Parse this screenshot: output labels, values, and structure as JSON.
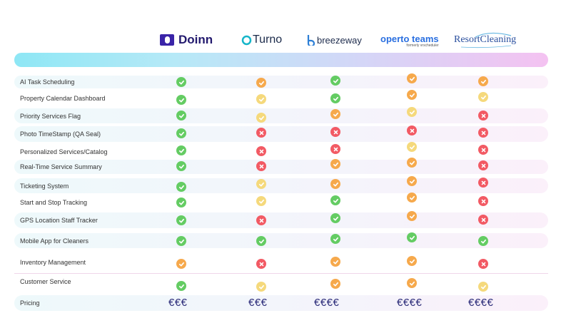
{
  "colors": {
    "yes": "#64cc63",
    "partial": "#f6a94c",
    "limited": "#f5d97c",
    "no": "#f25a64",
    "price": "#2a2a78"
  },
  "competitors": [
    {
      "name": "Doinn"
    },
    {
      "name": "Turno"
    },
    {
      "name": "breezeway"
    },
    {
      "name": "operto teams",
      "sub": "formerly vrscheduler"
    },
    {
      "name": "ResortCleaning"
    }
  ],
  "features": [
    {
      "label": "AI Task Scheduling",
      "marks": [
        "yes",
        "partial",
        "yes",
        "partial",
        "partial"
      ]
    },
    {
      "label": "Property Calendar Dashboard",
      "marks": [
        "yes",
        "limited",
        "yes",
        "partial",
        "limited"
      ]
    },
    {
      "label": "Priority Services Flag",
      "marks": [
        "yes",
        "limited",
        "partial",
        "limited",
        "no"
      ]
    },
    {
      "label": "Photo TimeStamp (QA Seal)",
      "marks": [
        "yes",
        "no",
        "no",
        "no",
        "no"
      ]
    },
    {
      "label": "Personalized Services/Catalog",
      "marks": [
        "yes",
        "no",
        "no",
        "limited",
        "no"
      ]
    },
    {
      "label": "Real-Time Service Summary",
      "marks": [
        "yes",
        "no",
        "partial",
        "partial",
        "no"
      ]
    },
    {
      "label": "Ticketing System",
      "marks": [
        "yes",
        "limited",
        "partial",
        "partial",
        "no"
      ]
    },
    {
      "label": "Start and Stop Tracking",
      "marks": [
        "yes",
        "limited",
        "yes",
        "partial",
        "no"
      ]
    },
    {
      "label": "GPS Location Staff Tracker",
      "marks": [
        "yes",
        "no",
        "yes",
        "partial",
        "no"
      ]
    },
    {
      "label": "Mobile App for Cleaners",
      "marks": [
        "yes",
        "yes",
        "yes",
        "yes",
        "yes"
      ]
    },
    {
      "label": "Inventory Management",
      "marks": [
        "partial",
        "no",
        "partial",
        "partial",
        "no"
      ]
    },
    {
      "label": "Customer Service",
      "marks": [
        "yes",
        "limited",
        "partial",
        "partial",
        "limited"
      ]
    }
  ],
  "pricing": {
    "label": "Pricing",
    "values": [
      "€€€",
      "€€€",
      "€€€€",
      "€€€€",
      "€€€€"
    ]
  }
}
